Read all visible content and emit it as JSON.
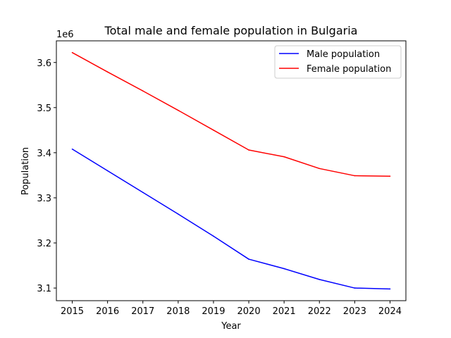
{
  "chart_data": {
    "type": "line",
    "title": "Total male and female population in Bulgaria",
    "xlabel": "Year",
    "ylabel": "Population",
    "y_offset_label": "1e6",
    "x": [
      2015,
      2016,
      2017,
      2018,
      2019,
      2020,
      2021,
      2022,
      2023,
      2024
    ],
    "xlim": [
      2014.55,
      2024.45
    ],
    "ylim": [
      3072000,
      3648000
    ],
    "y_scale_factor": 1000000,
    "y_ticks": [
      3100000,
      3200000,
      3300000,
      3400000,
      3500000,
      3600000
    ],
    "y_tick_labels": [
      "3.1",
      "3.2",
      "3.3",
      "3.4",
      "3.5",
      "3.6"
    ],
    "x_tick_labels": [
      "2015",
      "2016",
      "2017",
      "2018",
      "2019",
      "2020",
      "2021",
      "2022",
      "2023",
      "2024"
    ],
    "grid": false,
    "legend_position": "top-right",
    "series": [
      {
        "name": "Male population",
        "color": "#0000ff",
        "values": [
          3408000,
          3360000,
          3312000,
          3264000,
          3215000,
          3164000,
          3143000,
          3119000,
          3100000,
          3098000
        ]
      },
      {
        "name": "Female population",
        "color": "#ff0000",
        "values": [
          3622000,
          3579000,
          3537000,
          3494000,
          3450000,
          3406000,
          3391000,
          3365000,
          3349000,
          3348000
        ]
      }
    ]
  }
}
